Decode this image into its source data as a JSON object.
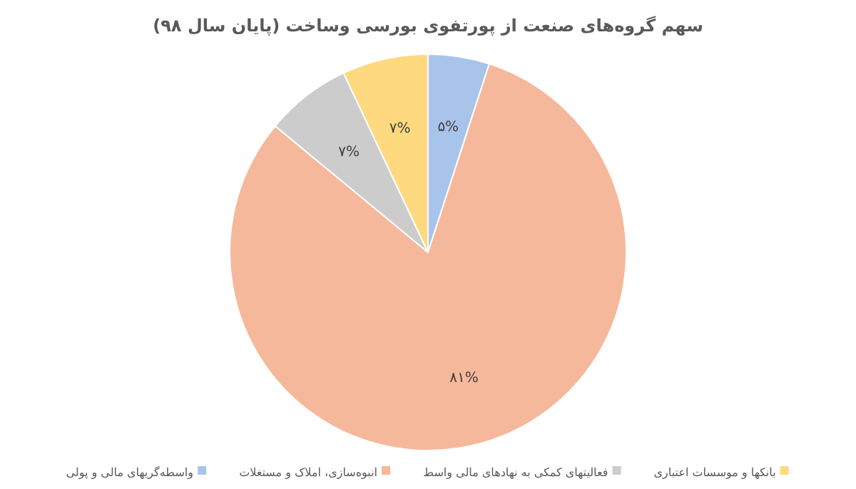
{
  "chart_data": {
    "type": "pie",
    "title": "سهم گروه‌های صنعت از پورتفوی بورسی وساخت (پایان سال ۹۸)",
    "categories": [
      "واسطه‌گریهای مالی و پولی",
      "انبوه‌سازی، املاک و مستغلات",
      "فعالیتهای کمکی به نهادهای مالی واسط",
      "بانکها و موسسات اعتباری"
    ],
    "values": [
      5,
      81,
      7,
      7
    ],
    "colors": [
      "#a9c4eb",
      "#f6b89a",
      "#cccccc",
      "#ffd97f"
    ],
    "value_labels": [
      "۵%",
      "۸۱%",
      "۷%",
      "۷%"
    ],
    "legend": "bottom"
  }
}
